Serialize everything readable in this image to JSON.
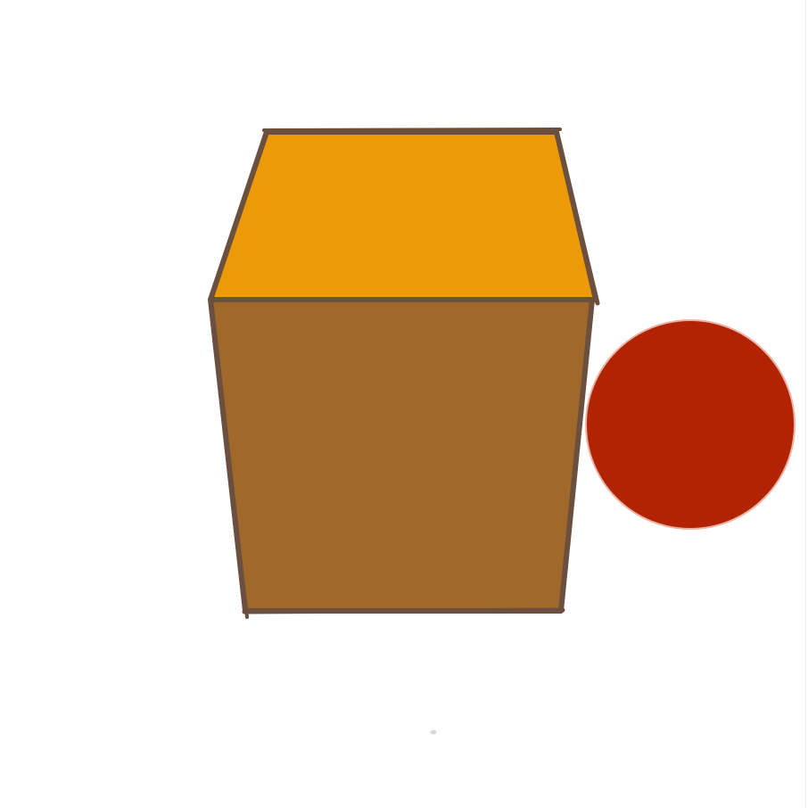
{
  "drawing": {
    "shapes": [
      {
        "name": "cube",
        "kind": "cube"
      },
      {
        "name": "circle",
        "kind": "circle"
      }
    ],
    "colors": {
      "background": "#ffffff",
      "cube_top": "#ed9a08",
      "cube_front": "#a0682b",
      "cube_outline": "#6b4f3f",
      "circle_fill": "#b22303",
      "circle_rim": "#e9b4a4",
      "smudge": "#d8d8d8"
    }
  }
}
